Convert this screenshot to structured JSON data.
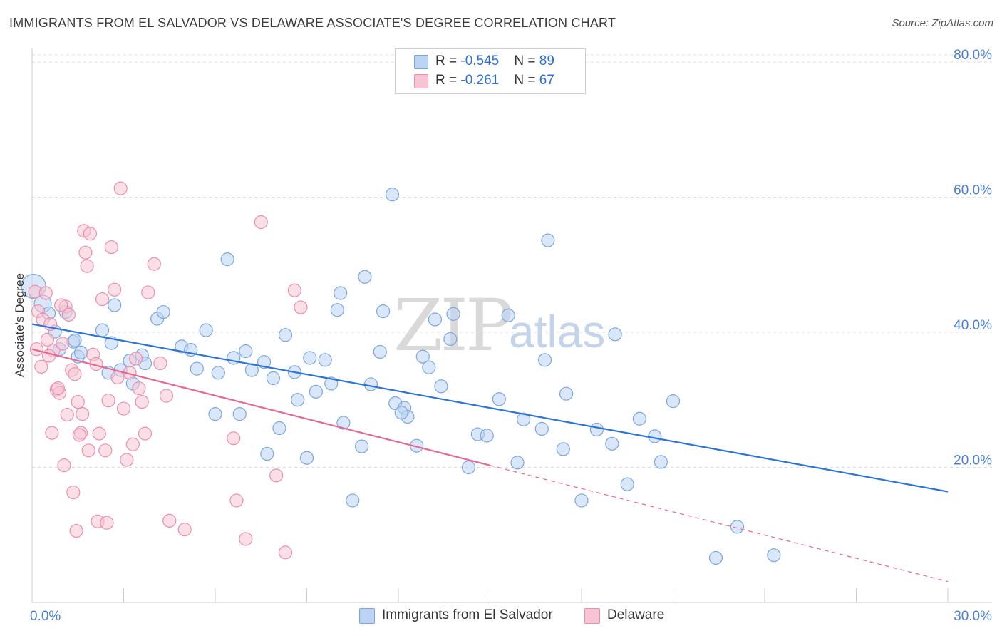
{
  "title": "IMMIGRANTS FROM EL SALVADOR VS DELAWARE ASSOCIATE'S DEGREE CORRELATION CHART",
  "source": "Source: ZipAtlas.com",
  "watermark": {
    "zip": "ZIP",
    "atlas": "atlas"
  },
  "legend": {
    "blue": {
      "r_label": "R = ",
      "r_value": "-0.545",
      "n_label": "N = ",
      "n_value": "89"
    },
    "pink": {
      "r_label": "R = ",
      "r_value": "-0.261",
      "n_label": "N = ",
      "n_value": "67"
    }
  },
  "bottom_legend": {
    "blue_label": "Immigrants from El Salvador",
    "pink_label": "Delaware"
  },
  "colors": {
    "blue_fill": "#bcd3f3",
    "blue_stroke": "#7aa6e0",
    "blue_line": "#2e74d4",
    "pink_fill": "#f8c4d4",
    "pink_stroke": "#ea8fad",
    "pink_line": "#e36a93",
    "tick_text": "#4a7fd0",
    "grid": "#dddddd"
  },
  "chart_data": {
    "type": "scatter",
    "title": "IMMIGRANTS FROM EL SALVADOR VS DELAWARE ASSOCIATE'S DEGREE CORRELATION CHART",
    "xlabel": "",
    "ylabel": "Associate's Degree",
    "xlim": [
      0,
      30
    ],
    "ylim": [
      0,
      82
    ],
    "x_tick_labels": [
      "0.0%",
      "30.0%"
    ],
    "y_ticks": [
      20,
      40,
      60,
      80
    ],
    "y_tick_labels": [
      "20.0%",
      "40.0%",
      "60.0%",
      "80.0%"
    ],
    "grid": true,
    "legend_position": "top-center",
    "series": [
      {
        "name": "Immigrants from El Salvador",
        "color": "#7aa6e0",
        "points": [
          [
            0.05,
            46.8
          ],
          [
            0.35,
            44.2
          ],
          [
            0.55,
            42.8
          ],
          [
            0.75,
            40.1
          ],
          [
            1.1,
            43.0
          ],
          [
            1.35,
            38.6
          ],
          [
            0.9,
            37.5
          ],
          [
            1.5,
            36.4
          ],
          [
            1.6,
            37.0
          ],
          [
            2.3,
            40.3
          ],
          [
            2.7,
            44.0
          ],
          [
            2.6,
            38.4
          ],
          [
            2.5,
            34.0
          ],
          [
            3.2,
            35.8
          ],
          [
            3.3,
            32.4
          ],
          [
            3.6,
            36.6
          ],
          [
            3.7,
            35.4
          ],
          [
            4.1,
            42.0
          ],
          [
            4.3,
            43.0
          ],
          [
            4.9,
            37.9
          ],
          [
            5.2,
            37.4
          ],
          [
            5.4,
            34.6
          ],
          [
            5.7,
            40.3
          ],
          [
            6.0,
            27.9
          ],
          [
            6.1,
            34.0
          ],
          [
            6.4,
            50.8
          ],
          [
            6.6,
            36.2
          ],
          [
            6.8,
            27.9
          ],
          [
            7.0,
            37.2
          ],
          [
            7.2,
            34.4
          ],
          [
            7.6,
            35.6
          ],
          [
            7.7,
            22.0
          ],
          [
            7.9,
            33.2
          ],
          [
            8.1,
            25.8
          ],
          [
            8.3,
            39.6
          ],
          [
            8.6,
            34.1
          ],
          [
            8.7,
            30.0
          ],
          [
            9.0,
            21.4
          ],
          [
            9.1,
            36.2
          ],
          [
            9.3,
            31.2
          ],
          [
            9.6,
            35.9
          ],
          [
            9.8,
            32.4
          ],
          [
            10.0,
            43.3
          ],
          [
            10.1,
            45.8
          ],
          [
            10.2,
            26.6
          ],
          [
            10.5,
            15.1
          ],
          [
            10.8,
            23.1
          ],
          [
            11.1,
            32.3
          ],
          [
            11.5,
            43.1
          ],
          [
            11.4,
            37.1
          ],
          [
            11.8,
            60.4
          ],
          [
            11.9,
            29.5
          ],
          [
            12.2,
            28.8
          ],
          [
            12.3,
            27.5
          ],
          [
            12.6,
            23.2
          ],
          [
            12.8,
            36.4
          ],
          [
            13.0,
            34.8
          ],
          [
            13.2,
            41.9
          ],
          [
            13.4,
            32.0
          ],
          [
            13.7,
            39.0
          ],
          [
            13.8,
            42.7
          ],
          [
            14.3,
            20.0
          ],
          [
            14.6,
            24.9
          ],
          [
            14.9,
            24.7
          ],
          [
            15.3,
            30.1
          ],
          [
            15.6,
            42.5
          ],
          [
            15.9,
            20.7
          ],
          [
            16.1,
            27.1
          ],
          [
            16.7,
            25.7
          ],
          [
            16.8,
            35.9
          ],
          [
            16.9,
            53.6
          ],
          [
            17.4,
            22.7
          ],
          [
            17.5,
            30.9
          ],
          [
            18.0,
            15.1
          ],
          [
            18.5,
            25.6
          ],
          [
            19.0,
            23.5
          ],
          [
            19.1,
            39.7
          ],
          [
            19.5,
            17.5
          ],
          [
            19.9,
            27.2
          ],
          [
            20.4,
            24.6
          ],
          [
            20.6,
            20.8
          ],
          [
            21.0,
            29.8
          ],
          [
            22.4,
            6.6
          ],
          [
            23.1,
            11.2
          ],
          [
            24.3,
            7.0
          ],
          [
            1.4,
            38.8
          ],
          [
            2.9,
            34.4
          ],
          [
            10.9,
            48.2
          ],
          [
            12.1,
            28.1
          ]
        ],
        "trend": {
          "x": [
            0,
            30
          ],
          "y": [
            41.2,
            16.4
          ],
          "dashed_from_x": null
        }
      },
      {
        "name": "Delaware",
        "color": "#ea8fad",
        "points": [
          [
            0.1,
            46.0
          ],
          [
            0.2,
            43.1
          ],
          [
            0.35,
            41.9
          ],
          [
            0.45,
            45.8
          ],
          [
            0.5,
            38.9
          ],
          [
            0.6,
            41.2
          ],
          [
            0.7,
            37.3
          ],
          [
            0.8,
            31.5
          ],
          [
            0.9,
            31.0
          ],
          [
            1.0,
            38.3
          ],
          [
            1.1,
            43.8
          ],
          [
            1.2,
            42.6
          ],
          [
            1.3,
            34.4
          ],
          [
            1.4,
            33.8
          ],
          [
            1.5,
            29.7
          ],
          [
            1.6,
            25.1
          ],
          [
            1.7,
            55.0
          ],
          [
            1.75,
            51.8
          ],
          [
            1.8,
            49.8
          ],
          [
            1.9,
            54.6
          ],
          [
            2.0,
            36.7
          ],
          [
            2.1,
            35.3
          ],
          [
            2.2,
            25.0
          ],
          [
            2.3,
            44.9
          ],
          [
            2.4,
            22.5
          ],
          [
            2.5,
            29.9
          ],
          [
            2.6,
            52.6
          ],
          [
            2.7,
            46.3
          ],
          [
            2.8,
            33.3
          ],
          [
            2.9,
            61.3
          ],
          [
            3.0,
            28.7
          ],
          [
            3.1,
            21.1
          ],
          [
            3.2,
            34.0
          ],
          [
            3.3,
            23.4
          ],
          [
            3.4,
            36.1
          ],
          [
            3.5,
            31.7
          ],
          [
            3.6,
            29.7
          ],
          [
            3.7,
            25.0
          ],
          [
            3.8,
            45.9
          ],
          [
            4.0,
            50.1
          ],
          [
            4.2,
            35.4
          ],
          [
            4.4,
            30.6
          ],
          [
            0.3,
            34.9
          ],
          [
            0.55,
            36.5
          ],
          [
            0.65,
            25.1
          ],
          [
            0.85,
            31.7
          ],
          [
            1.05,
            20.3
          ],
          [
            1.15,
            27.8
          ],
          [
            1.35,
            16.3
          ],
          [
            1.45,
            10.6
          ],
          [
            1.55,
            24.8
          ],
          [
            1.65,
            27.9
          ],
          [
            1.85,
            22.5
          ],
          [
            2.15,
            12.0
          ],
          [
            2.45,
            11.8
          ],
          [
            4.5,
            12.1
          ],
          [
            5.0,
            10.8
          ],
          [
            6.6,
            24.3
          ],
          [
            6.7,
            15.1
          ],
          [
            7.0,
            9.4
          ],
          [
            7.5,
            56.3
          ],
          [
            8.0,
            18.8
          ],
          [
            8.3,
            7.4
          ],
          [
            8.6,
            46.2
          ],
          [
            8.8,
            43.7
          ],
          [
            0.15,
            37.5
          ],
          [
            0.95,
            44.0
          ]
        ],
        "trend": {
          "x": [
            0,
            30
          ],
          "y": [
            37.5,
            3.1
          ],
          "dashed_from_x": 15.0
        }
      }
    ]
  }
}
